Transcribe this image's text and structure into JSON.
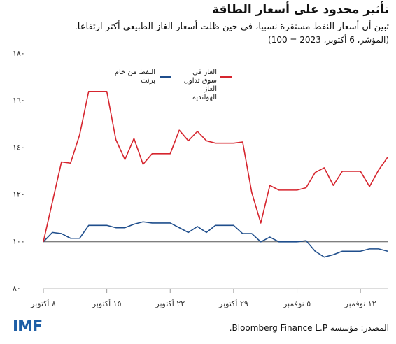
{
  "chart_data": {
    "type": "line",
    "title": "تأثير محدود على أسعار الطاقة",
    "subtitle": "تبين أن أسعار النفط مستقرة نسبيا، في حين ظلت أسعار الغاز الطبيعي أكثر ارتفاعا.",
    "note": "(المؤشر، 6 أكتوبر، 2023 = 100)",
    "source": "المصدر: مؤسسة Bloomberg Finance L.P.",
    "logo": "IMF",
    "x": [
      "2023-10-08",
      "2023-10-09",
      "2023-10-10",
      "2023-10-11",
      "2023-10-12",
      "2023-10-13",
      "2023-10-14",
      "2023-10-15",
      "2023-10-16",
      "2023-10-17",
      "2023-10-18",
      "2023-10-19",
      "2023-10-20",
      "2023-10-21",
      "2023-10-22",
      "2023-10-23",
      "2023-10-24",
      "2023-10-25",
      "2023-10-26",
      "2023-10-27",
      "2023-10-28",
      "2023-10-29",
      "2023-10-30",
      "2023-10-31",
      "2023-11-01",
      "2023-11-02",
      "2023-11-03",
      "2023-11-04",
      "2023-11-05",
      "2023-11-06",
      "2023-11-07",
      "2023-11-08",
      "2023-11-09",
      "2023-11-10",
      "2023-11-11",
      "2023-11-12",
      "2023-11-13",
      "2023-11-14",
      "2023-11-15"
    ],
    "series": [
      {
        "name": "النفط من خام برنت",
        "color": "#1f4e8c",
        "values": [
          100,
          104,
          103.5,
          101.5,
          101.5,
          107,
          107,
          107,
          106,
          106,
          107.5,
          108.5,
          108,
          108,
          108,
          106,
          104,
          106.5,
          104,
          107,
          107,
          107,
          103.5,
          103.5,
          100,
          102,
          100,
          100,
          100,
          100.5,
          96,
          93.5,
          94.5,
          96,
          96,
          96,
          97,
          97,
          96
        ]
      },
      {
        "name": "الغاز في سوق تداول الغاز الهولندية",
        "color": "#d6252e",
        "values": [
          100,
          117,
          134,
          133.5,
          145.5,
          164,
          164,
          164,
          143.5,
          135,
          144,
          133,
          137.5,
          137.5,
          137.5,
          147.5,
          143,
          147,
          143,
          142,
          142,
          142,
          142.5,
          121,
          108,
          124,
          122,
          122,
          122,
          123,
          129.5,
          131.5,
          124,
          130,
          130,
          130,
          123.5,
          130.5,
          136
        ]
      }
    ],
    "xlim": [
      "2023-10-08",
      "2023-11-15"
    ],
    "xticks": [
      {
        "value": "2023-10-08",
        "label": "٨ أكتوبر"
      },
      {
        "value": "2023-10-15",
        "label": "١٥ أكتوبر"
      },
      {
        "value": "2023-10-22",
        "label": "٢٢ أكتوبر"
      },
      {
        "value": "2023-10-29",
        "label": "٢٩ أكتوبر"
      },
      {
        "value": "2023-11-05",
        "label": "٥ نوفمبر"
      },
      {
        "value": "2023-11-12",
        "label": "١٢ نوفمبر"
      }
    ],
    "ylim": [
      80,
      180
    ],
    "yticks": [
      {
        "value": 80,
        "label": "٨٠"
      },
      {
        "value": 100,
        "label": "١٠٠"
      },
      {
        "value": 120,
        "label": "١٢٠"
      },
      {
        "value": 140,
        "label": "١٤٠"
      },
      {
        "value": 160,
        "label": "١٦٠"
      },
      {
        "value": 180,
        "label": "١٨٠"
      }
    ],
    "reference_line": 100,
    "grid": false
  }
}
